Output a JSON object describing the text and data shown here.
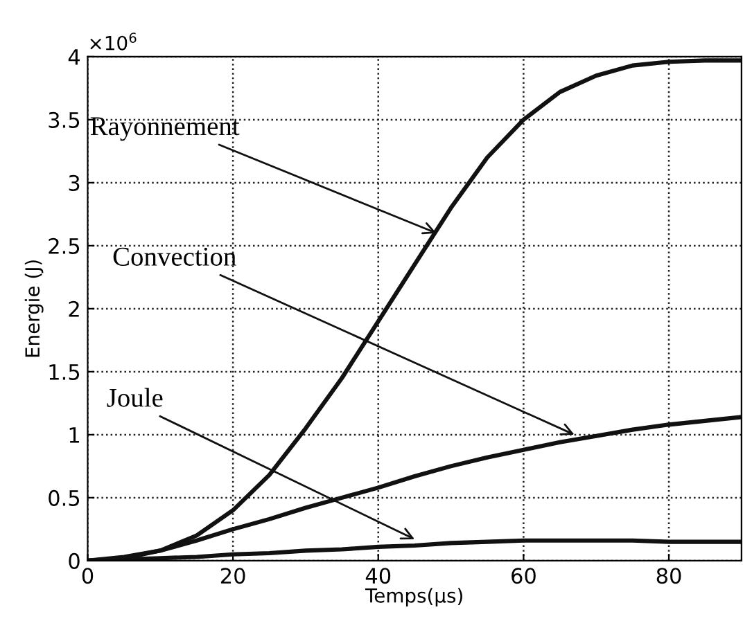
{
  "chart_data": {
    "type": "line",
    "xlabel": "Temps(µs)",
    "ylabel": "Energie (J)",
    "x": [
      0,
      5,
      10,
      15,
      20,
      25,
      30,
      35,
      40,
      45,
      50,
      55,
      60,
      65,
      70,
      75,
      80,
      85,
      90
    ],
    "series": [
      {
        "color": "#111111",
        "values": [
          0,
          0.02,
          0.08,
          0.2,
          0.4,
          0.68,
          1.05,
          1.45,
          1.9,
          2.35,
          2.8,
          3.2,
          3.5,
          3.72,
          3.85,
          3.93,
          3.96,
          3.97,
          3.97
        ]
      },
      {
        "color": "#111111",
        "values": [
          0,
          0.03,
          0.08,
          0.16,
          0.25,
          0.33,
          0.42,
          0.5,
          0.58,
          0.67,
          0.75,
          0.82,
          0.88,
          0.94,
          0.99,
          1.04,
          1.08,
          1.11,
          1.14
        ]
      },
      {
        "color": "#111111",
        "values": [
          0,
          0.01,
          0.02,
          0.03,
          0.05,
          0.06,
          0.08,
          0.09,
          0.11,
          0.12,
          0.14,
          0.15,
          0.16,
          0.16,
          0.16,
          0.16,
          0.15,
          0.15,
          0.15
        ]
      }
    ],
    "annotations": [
      {
        "text": "Rayonnement",
        "x": 48,
        "y": 2.6
      },
      {
        "text": "Convection",
        "x": 67,
        "y": 1.0
      },
      {
        "text": "Joule",
        "x": 45,
        "y": 0.17
      },
      "×10$^{6}$"
    ],
    "xlim": [
      0,
      90
    ],
    "ylim": [
      0,
      4
    ],
    "xticks": [
      0,
      20,
      40,
      60,
      80
    ],
    "yticks": [
      0,
      0.5,
      1,
      1.5,
      2,
      2.5,
      3,
      3.5,
      4
    ],
    "grid": true,
    "marker": "none",
    "line_style": "solid",
    "legend": false
  }
}
